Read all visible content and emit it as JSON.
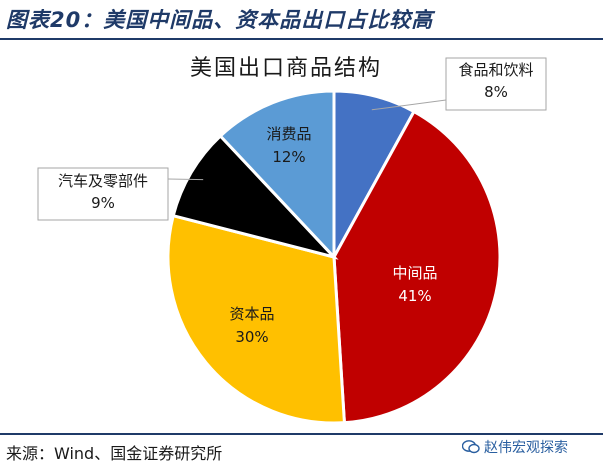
{
  "header": {
    "figure_title": "图表20：美国中间品、资本品出口占比较高"
  },
  "footer": {
    "source": "来源：Wind、国金证券研究所",
    "watermark": "赵伟宏观探索"
  },
  "chart_data": {
    "type": "pie",
    "title": "美国出口商品结构",
    "start_angle_deg": 0,
    "direction": "clockwise",
    "slices": [
      {
        "name": "食品和饮料",
        "value": 8,
        "label": "8%",
        "color": "#4472c4",
        "label_position": "outside-callout"
      },
      {
        "name": "中间品",
        "value": 41,
        "label": "41%",
        "color": "#c00000",
        "label_position": "inside"
      },
      {
        "name": "资本品",
        "value": 30,
        "label": "30%",
        "color": "#ffc000",
        "label_position": "inside"
      },
      {
        "name": "汽车及零部件",
        "value": 9,
        "label": "9%",
        "color": "#000000",
        "label_position": "outside-callout"
      },
      {
        "name": "消费品",
        "value": 12,
        "label": "12%",
        "color": "#5b9bd5",
        "label_position": "inside"
      }
    ],
    "legend": "none"
  }
}
